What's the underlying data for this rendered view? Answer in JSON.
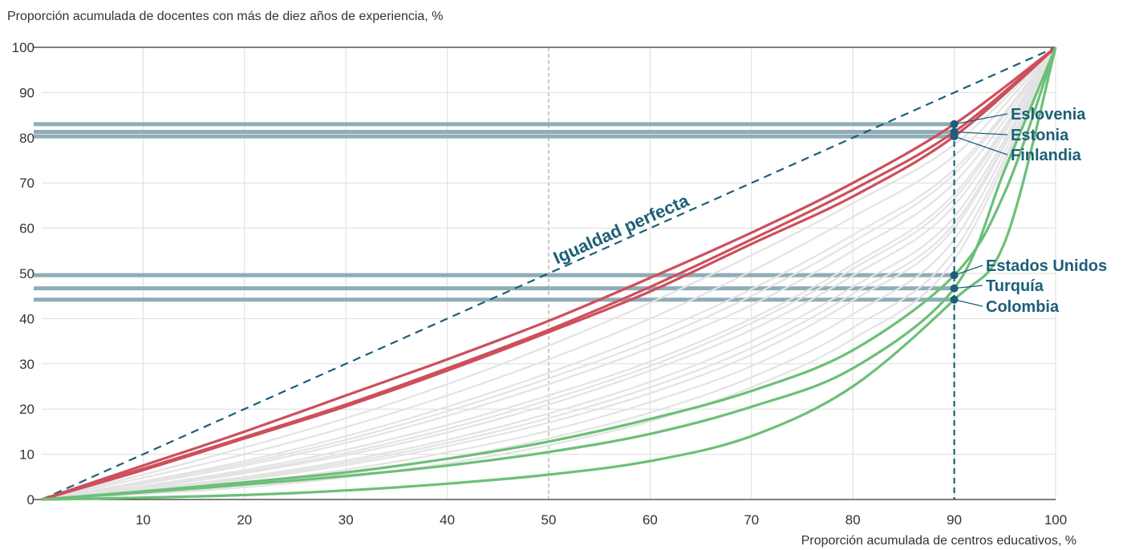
{
  "chart_data": {
    "type": "line",
    "ylabel": "Proporción acumulada de docentes con más de diez años de experiencia, %",
    "xlabel": "Proporción acumulada de centros educativos, %",
    "xlim": [
      0,
      100
    ],
    "ylim": [
      0,
      100
    ],
    "x_ticks": [
      "10",
      "20",
      "30",
      "40",
      "50",
      "60",
      "70",
      "80",
      "90",
      "100"
    ],
    "y_ticks": [
      "0",
      "10",
      "20",
      "30",
      "40",
      "50",
      "60",
      "70",
      "80",
      "90",
      "100"
    ],
    "grid": true,
    "annotation": "Igualdad perfecta",
    "reference_x": 90,
    "colors": {
      "high_equality": "#cd4f5c",
      "low_equality": "#6cbf78",
      "other": "#e3e3e3",
      "highlight_band": "#8fadb7",
      "marker": "#1c5f78"
    },
    "highlighted": [
      {
        "name": "Eslovenia",
        "value_at_90": 83.0,
        "group": "high"
      },
      {
        "name": "Estonia",
        "value_at_90": 81.3,
        "group": "high"
      },
      {
        "name": "Finlandia",
        "value_at_90": 80.3,
        "group": "high"
      },
      {
        "name": "Estados Unidos",
        "value_at_90": 49.6,
        "group": "low"
      },
      {
        "name": "Turquía",
        "value_at_90": 46.7,
        "group": "low"
      },
      {
        "name": "Colombia",
        "value_at_90": 44.2,
        "group": "low"
      }
    ],
    "series": [
      {
        "name": "Eslovenia",
        "x": [
          0,
          10,
          20,
          30,
          40,
          50,
          60,
          70,
          80,
          90,
          100
        ],
        "y": [
          0,
          7.5,
          15.0,
          23.0,
          31.0,
          39.5,
          49.0,
          59.0,
          70.0,
          83.0,
          100
        ]
      },
      {
        "name": "Estonia",
        "x": [
          0,
          10,
          20,
          30,
          40,
          50,
          60,
          70,
          80,
          90,
          100
        ],
        "y": [
          0,
          6.8,
          13.8,
          21.0,
          29.0,
          37.5,
          47.0,
          57.5,
          68.5,
          81.3,
          100
        ]
      },
      {
        "name": "Finlandia",
        "x": [
          0,
          10,
          20,
          30,
          40,
          50,
          60,
          70,
          80,
          90,
          100
        ],
        "y": [
          0,
          6.5,
          13.5,
          20.6,
          28.5,
          37.0,
          46.0,
          56.5,
          67.0,
          80.3,
          100
        ]
      },
      {
        "name": "Estados Unidos",
        "x": [
          0,
          10,
          20,
          30,
          40,
          50,
          60,
          70,
          80,
          90,
          95,
          100
        ],
        "y": [
          0,
          1.8,
          3.8,
          6.0,
          9.0,
          12.8,
          17.8,
          24.0,
          33.0,
          49.6,
          68.0,
          100
        ]
      },
      {
        "name": "Turquía",
        "x": [
          0,
          10,
          20,
          30,
          40,
          50,
          60,
          70,
          80,
          90,
          95,
          100
        ],
        "y": [
          0,
          1.6,
          3.3,
          5.2,
          7.5,
          10.5,
          14.5,
          20.5,
          29.0,
          46.7,
          73.0,
          100
        ]
      },
      {
        "name": "Colombia",
        "x": [
          0,
          10,
          20,
          30,
          40,
          50,
          60,
          70,
          80,
          90,
          95,
          100
        ],
        "y": [
          0,
          0.4,
          1.0,
          2.0,
          3.5,
          5.5,
          8.5,
          14.0,
          25.0,
          44.2,
          57.0,
          100
        ]
      },
      {
        "x": [
          0,
          10,
          20,
          30,
          40,
          50,
          60,
          70,
          80,
          90,
          100
        ],
        "y": [
          0,
          5.5,
          11.5,
          18.0,
          25.5,
          34.0,
          43.5,
          54.0,
          65.5,
          78.5,
          100
        ]
      },
      {
        "x": [
          0,
          10,
          20,
          30,
          40,
          50,
          60,
          70,
          80,
          90,
          100
        ],
        "y": [
          0,
          4.8,
          10.0,
          16.0,
          23.0,
          31.0,
          40.0,
          50.5,
          62.5,
          76.0,
          100
        ]
      },
      {
        "x": [
          0,
          10,
          20,
          30,
          40,
          50,
          60,
          70,
          80,
          90,
          100
        ],
        "y": [
          0,
          4.0,
          8.5,
          14.0,
          20.5,
          28.0,
          36.5,
          46.5,
          58.5,
          73.0,
          100
        ]
      },
      {
        "x": [
          0,
          10,
          20,
          30,
          40,
          50,
          60,
          70,
          80,
          90,
          100
        ],
        "y": [
          0,
          3.5,
          7.5,
          12.5,
          18.5,
          25.5,
          33.5,
          43.0,
          55.0,
          70.0,
          100
        ]
      },
      {
        "x": [
          0,
          10,
          20,
          30,
          40,
          50,
          60,
          70,
          80,
          90,
          100
        ],
        "y": [
          0,
          3.0,
          6.5,
          11.0,
          16.5,
          23.0,
          30.5,
          40.0,
          52.0,
          67.5,
          100
        ]
      },
      {
        "x": [
          0,
          10,
          20,
          30,
          40,
          50,
          60,
          70,
          80,
          90,
          100
        ],
        "y": [
          0,
          2.6,
          5.8,
          9.8,
          14.8,
          21.0,
          28.5,
          37.5,
          49.5,
          65.0,
          100
        ]
      },
      {
        "x": [
          0,
          10,
          20,
          30,
          40,
          50,
          60,
          70,
          80,
          90,
          100
        ],
        "y": [
          0,
          2.3,
          5.0,
          8.6,
          13.2,
          19.0,
          26.0,
          35.0,
          47.0,
          62.5,
          100
        ]
      },
      {
        "x": [
          0,
          10,
          20,
          30,
          40,
          50,
          60,
          70,
          80,
          90,
          100
        ],
        "y": [
          0,
          2.0,
          4.4,
          7.6,
          11.8,
          17.0,
          23.5,
          32.0,
          44.0,
          60.0,
          100
        ]
      },
      {
        "x": [
          0,
          10,
          20,
          30,
          40,
          50,
          60,
          70,
          80,
          90,
          100
        ],
        "y": [
          0,
          1.7,
          3.8,
          6.6,
          10.4,
          15.2,
          21.5,
          29.5,
          41.0,
          57.5,
          100
        ]
      },
      {
        "x": [
          0,
          10,
          20,
          30,
          40,
          50,
          60,
          70,
          80,
          90,
          100
        ],
        "y": [
          0,
          1.4,
          3.2,
          5.7,
          9.1,
          13.5,
          19.2,
          27.0,
          38.0,
          55.0,
          100
        ]
      },
      {
        "x": [
          0,
          10,
          20,
          30,
          40,
          50,
          60,
          70,
          80,
          90,
          100
        ],
        "y": [
          0,
          1.2,
          2.7,
          4.9,
          8.0,
          12.0,
          17.3,
          24.8,
          35.5,
          53.0,
          100
        ]
      },
      {
        "x": [
          0,
          10,
          20,
          30,
          40,
          50,
          60,
          70,
          80,
          90,
          100
        ],
        "y": [
          0,
          3.8,
          8.0,
          13.2,
          19.5,
          26.8,
          35.0,
          45.0,
          57.0,
          72.0,
          100
        ]
      },
      {
        "x": [
          0,
          10,
          20,
          30,
          40,
          50,
          60,
          70,
          80,
          90,
          100
        ],
        "y": [
          0,
          2.8,
          6.1,
          10.3,
          15.6,
          22.0,
          29.5,
          39.0,
          51.0,
          66.5,
          100
        ]
      },
      {
        "x": [
          0,
          10,
          20,
          30,
          40,
          50,
          60,
          70,
          80,
          90,
          100
        ],
        "y": [
          0,
          2.2,
          4.7,
          8.1,
          12.5,
          18.0,
          24.8,
          33.5,
          45.5,
          61.0,
          100
        ]
      }
    ]
  }
}
